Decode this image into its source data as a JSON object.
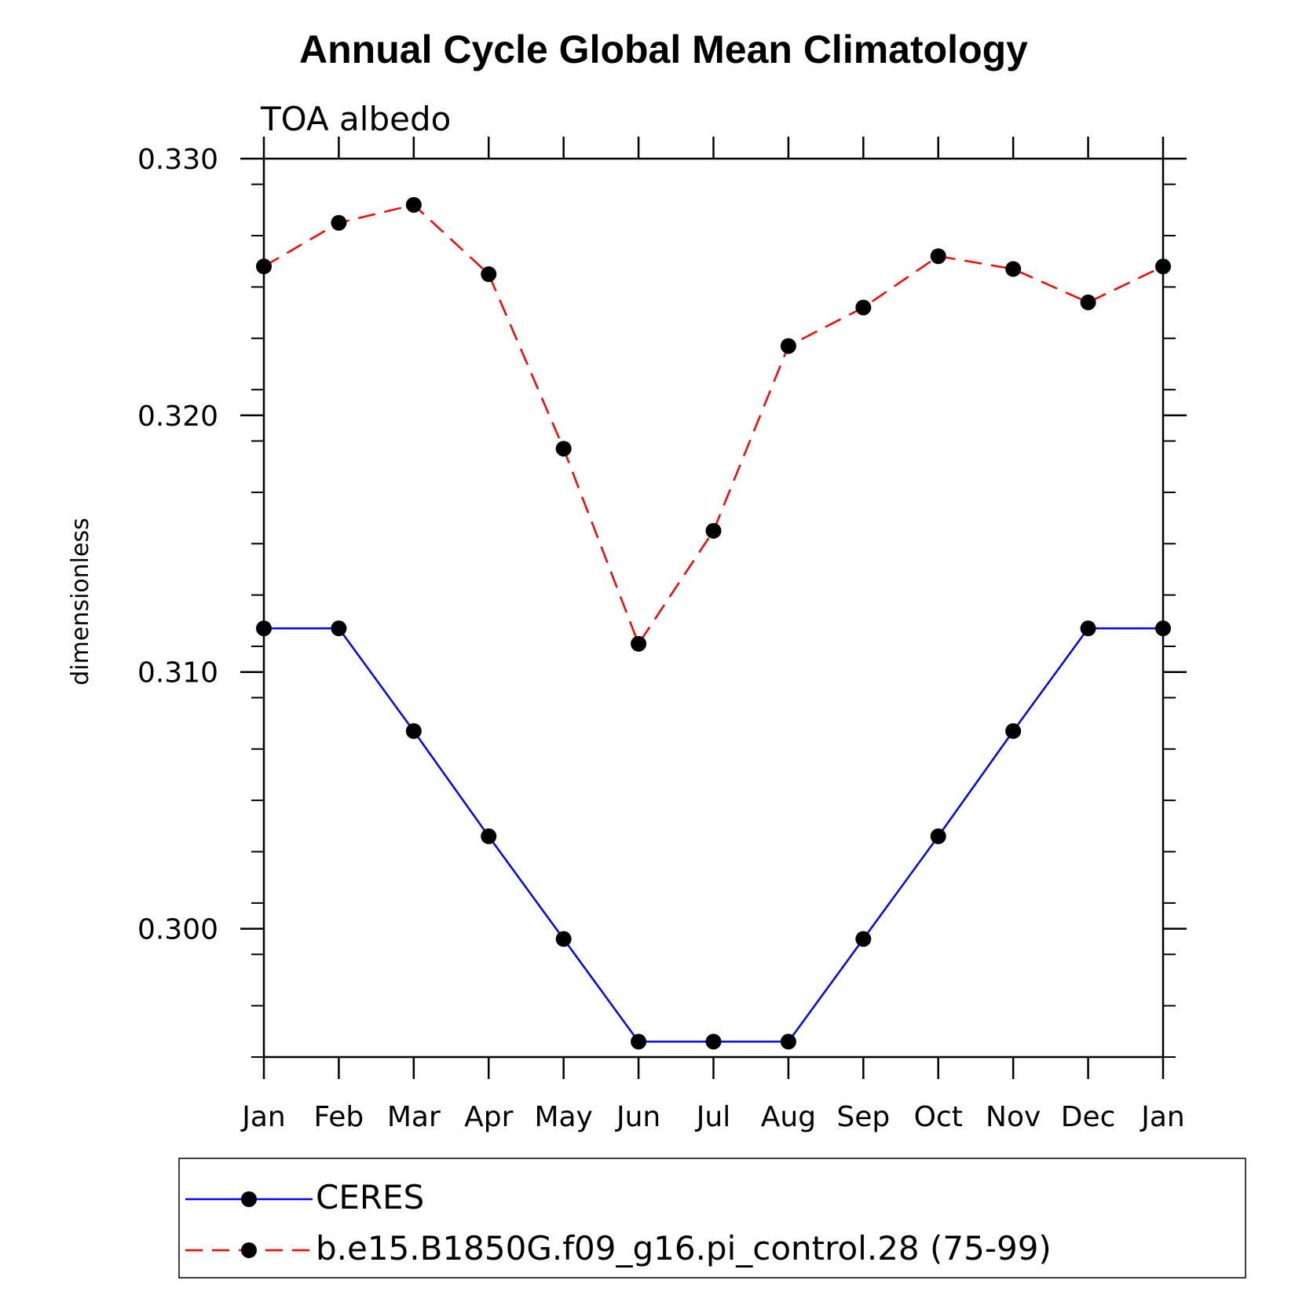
{
  "chart_data": {
    "type": "line",
    "title": "Annual Cycle Global Mean Climatology",
    "subtitle": "TOA albedo",
    "xlabel": "",
    "ylabel": "dimensionless",
    "categories": [
      "Jan",
      "Feb",
      "Mar",
      "Apr",
      "May",
      "Jun",
      "Jul",
      "Aug",
      "Sep",
      "Oct",
      "Nov",
      "Dec",
      "Jan"
    ],
    "ylim": [
      0.295,
      0.33
    ],
    "yticks_major": [
      0.3,
      0.31,
      0.32,
      0.33
    ],
    "ytick_labels": [
      "0.300",
      "0.310",
      "0.320",
      "0.330"
    ],
    "yminor_step": 0.002,
    "grid": false,
    "legend_position": "bottom",
    "series": [
      {
        "name": "CERES",
        "color": "#0000ff",
        "dash": "solid",
        "marker": "filled-circle",
        "values": [
          0.3117,
          0.3117,
          0.3077,
          0.3036,
          0.2996,
          0.2956,
          0.2956,
          0.2956,
          0.2996,
          0.3036,
          0.3077,
          0.3117,
          0.3117
        ]
      },
      {
        "name": "b.e15.B1850G.f09_g16.pi_control.28 (75-99)",
        "color": "#ff0000",
        "dash": "dashed",
        "marker": "filled-circle",
        "values": [
          0.3258,
          0.3275,
          0.3282,
          0.3255,
          0.3187,
          0.3111,
          0.3155,
          0.3227,
          0.3242,
          0.3262,
          0.3257,
          0.3244,
          0.3258
        ]
      }
    ]
  }
}
